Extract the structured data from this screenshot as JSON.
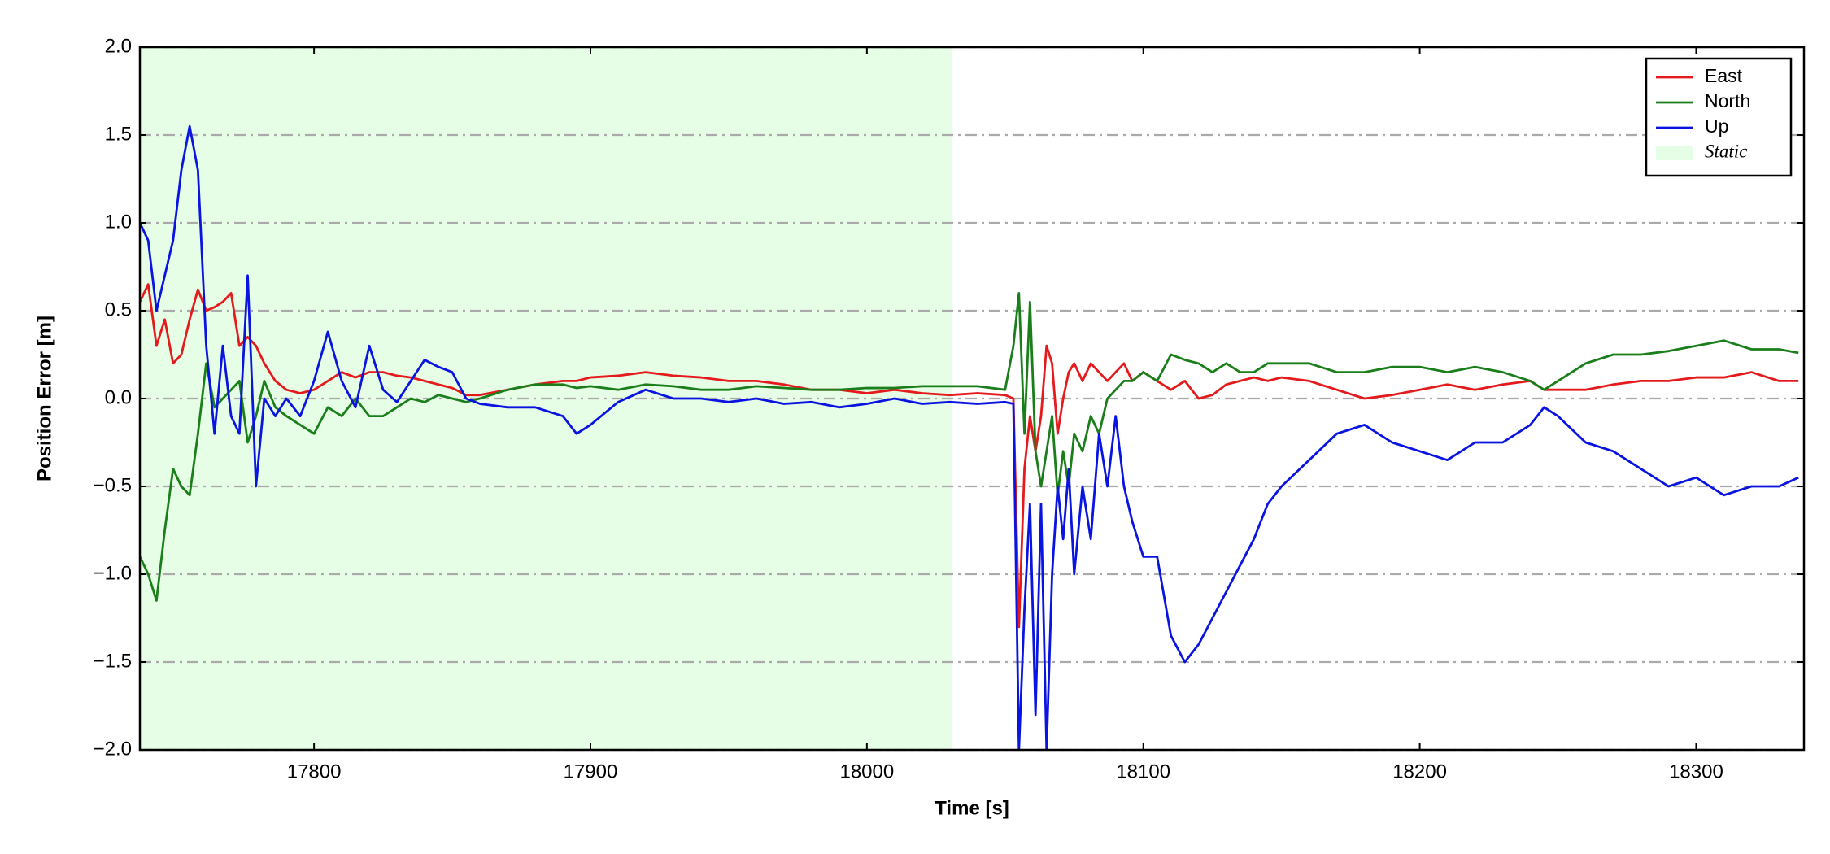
{
  "chart_data": {
    "type": "line",
    "xlabel": "Time [s]",
    "ylabel": "Position Error [m]",
    "x": [
      17737,
      17740,
      17743,
      17746,
      17749,
      17752,
      17755,
      17758,
      17761,
      17764,
      17767,
      17770,
      17773,
      17776,
      17779,
      17782,
      17786,
      17790,
      17795,
      17800,
      17805,
      17810,
      17815,
      17820,
      17825,
      17830,
      17835,
      17840,
      17845,
      17850,
      17855,
      17860,
      17870,
      17880,
      17890,
      17895,
      17900,
      17910,
      17920,
      17930,
      17940,
      17950,
      17960,
      17970,
      17980,
      17990,
      18000,
      18010,
      18020,
      18030,
      18040,
      18050,
      18053,
      18055,
      18057,
      18059,
      18061,
      18063,
      18065,
      18067,
      18069,
      18071,
      18073,
      18075,
      18078,
      18081,
      18084,
      18087,
      18090,
      18093,
      18096,
      18100,
      18105,
      18110,
      18115,
      18120,
      18125,
      18130,
      18135,
      18140,
      18145,
      18150,
      18160,
      18170,
      18180,
      18190,
      18200,
      18210,
      18220,
      18230,
      18240,
      18245,
      18250,
      18260,
      18270,
      18280,
      18290,
      18300,
      18310,
      18320,
      18330,
      18337
    ],
    "series": [
      {
        "name": "East",
        "color": "#e41a1c",
        "values": [
          0.55,
          0.65,
          0.3,
          0.45,
          0.2,
          0.25,
          0.45,
          0.62,
          0.5,
          0.52,
          0.55,
          0.6,
          0.3,
          0.35,
          0.3,
          0.2,
          0.1,
          0.05,
          0.03,
          0.05,
          0.1,
          0.15,
          0.12,
          0.15,
          0.15,
          0.13,
          0.12,
          0.1,
          0.08,
          0.06,
          0.02,
          0.02,
          0.05,
          0.08,
          0.1,
          0.1,
          0.12,
          0.13,
          0.15,
          0.13,
          0.12,
          0.1,
          0.1,
          0.08,
          0.05,
          0.05,
          0.03,
          0.05,
          0.03,
          0.02,
          0.03,
          0.02,
          0.0,
          -1.3,
          -0.4,
          -0.1,
          -0.3,
          -0.1,
          0.3,
          0.2,
          -0.2,
          0.0,
          0.15,
          0.2,
          0.1,
          0.2,
          0.15,
          0.1,
          0.15,
          0.2,
          0.1,
          0.15,
          0.1,
          0.05,
          0.1,
          0.0,
          0.02,
          0.08,
          0.1,
          0.12,
          0.1,
          0.12,
          0.1,
          0.05,
          0.0,
          0.02,
          0.05,
          0.08,
          0.05,
          0.08,
          0.1,
          0.05,
          0.05,
          0.05,
          0.08,
          0.1,
          0.1,
          0.12,
          0.12,
          0.15,
          0.1,
          0.1
        ]
      },
      {
        "name": "North",
        "color": "#1a7f1a",
        "values": [
          -0.9,
          -1.0,
          -1.15,
          -0.75,
          -0.4,
          -0.5,
          -0.55,
          -0.2,
          0.2,
          -0.05,
          0.0,
          0.05,
          0.1,
          -0.25,
          -0.1,
          0.1,
          -0.05,
          -0.1,
          -0.15,
          -0.2,
          -0.05,
          -0.1,
          0.0,
          -0.1,
          -0.1,
          -0.05,
          0.0,
          -0.02,
          0.02,
          0.0,
          -0.02,
          0.0,
          0.05,
          0.08,
          0.08,
          0.06,
          0.07,
          0.05,
          0.08,
          0.07,
          0.05,
          0.05,
          0.07,
          0.06,
          0.05,
          0.05,
          0.06,
          0.06,
          0.07,
          0.07,
          0.07,
          0.05,
          0.3,
          0.6,
          -0.2,
          0.55,
          -0.3,
          -0.5,
          -0.3,
          -0.1,
          -0.55,
          -0.3,
          -0.5,
          -0.2,
          -0.3,
          -0.1,
          -0.2,
          0.0,
          0.05,
          0.1,
          0.1,
          0.15,
          0.1,
          0.25,
          0.22,
          0.2,
          0.15,
          0.2,
          0.15,
          0.15,
          0.2,
          0.2,
          0.2,
          0.15,
          0.15,
          0.18,
          0.18,
          0.15,
          0.18,
          0.15,
          0.1,
          0.05,
          0.1,
          0.2,
          0.25,
          0.25,
          0.27,
          0.3,
          0.33,
          0.28,
          0.28,
          0.26
        ]
      },
      {
        "name": "Up",
        "color": "#0a14e0",
        "values": [
          1.0,
          0.9,
          0.5,
          0.7,
          0.9,
          1.3,
          1.55,
          1.3,
          0.3,
          -0.2,
          0.3,
          -0.1,
          -0.2,
          0.7,
          -0.5,
          0.0,
          -0.1,
          0.0,
          -0.1,
          0.1,
          0.38,
          0.1,
          -0.05,
          0.3,
          0.05,
          -0.02,
          0.1,
          0.22,
          0.18,
          0.15,
          0.0,
          -0.03,
          -0.05,
          -0.05,
          -0.1,
          -0.2,
          -0.15,
          -0.02,
          0.05,
          0.0,
          0.0,
          -0.02,
          0.0,
          -0.03,
          -0.02,
          -0.05,
          -0.03,
          0.0,
          -0.03,
          -0.02,
          -0.03,
          -0.02,
          -0.03,
          -2.0,
          -1.2,
          -0.6,
          -1.8,
          -0.6,
          -2.0,
          -1.0,
          -0.5,
          -0.8,
          -0.4,
          -1.0,
          -0.5,
          -0.8,
          -0.2,
          -0.5,
          -0.1,
          -0.5,
          -0.7,
          -0.9,
          -0.9,
          -1.35,
          -1.5,
          -1.4,
          -1.25,
          -1.1,
          -0.95,
          -0.8,
          -0.6,
          -0.5,
          -0.35,
          -0.2,
          -0.15,
          -0.25,
          -0.3,
          -0.35,
          -0.25,
          -0.25,
          -0.15,
          -0.05,
          -0.1,
          -0.25,
          -0.3,
          -0.4,
          -0.5,
          -0.45,
          -0.55,
          -0.5,
          -0.5,
          -0.45
        ]
      }
    ],
    "spans": [
      {
        "name": "Static",
        "start": 17737,
        "end": 18031,
        "color": "#e6fde6"
      }
    ],
    "xlim": [
      17737,
      18339
    ],
    "ylim": [
      -2.0,
      2.0
    ],
    "xticks": [
      17800,
      17900,
      18000,
      18100,
      18200,
      18300
    ],
    "yticks": [
      {
        "value": -2,
        "label": "−2.0"
      },
      {
        "value": -1.5,
        "label": "−1.5"
      },
      {
        "value": -1,
        "label": "−1.0"
      },
      {
        "value": -0.5,
        "label": "−0.5"
      },
      {
        "value": 0,
        "label": "0.0"
      },
      {
        "value": 0.5,
        "label": "0.5"
      },
      {
        "value": 1,
        "label": "1.0"
      },
      {
        "value": 1.5,
        "label": "1.5"
      },
      {
        "value": 2,
        "label": "2.0"
      }
    ],
    "grid": true,
    "legend": "upper right"
  }
}
